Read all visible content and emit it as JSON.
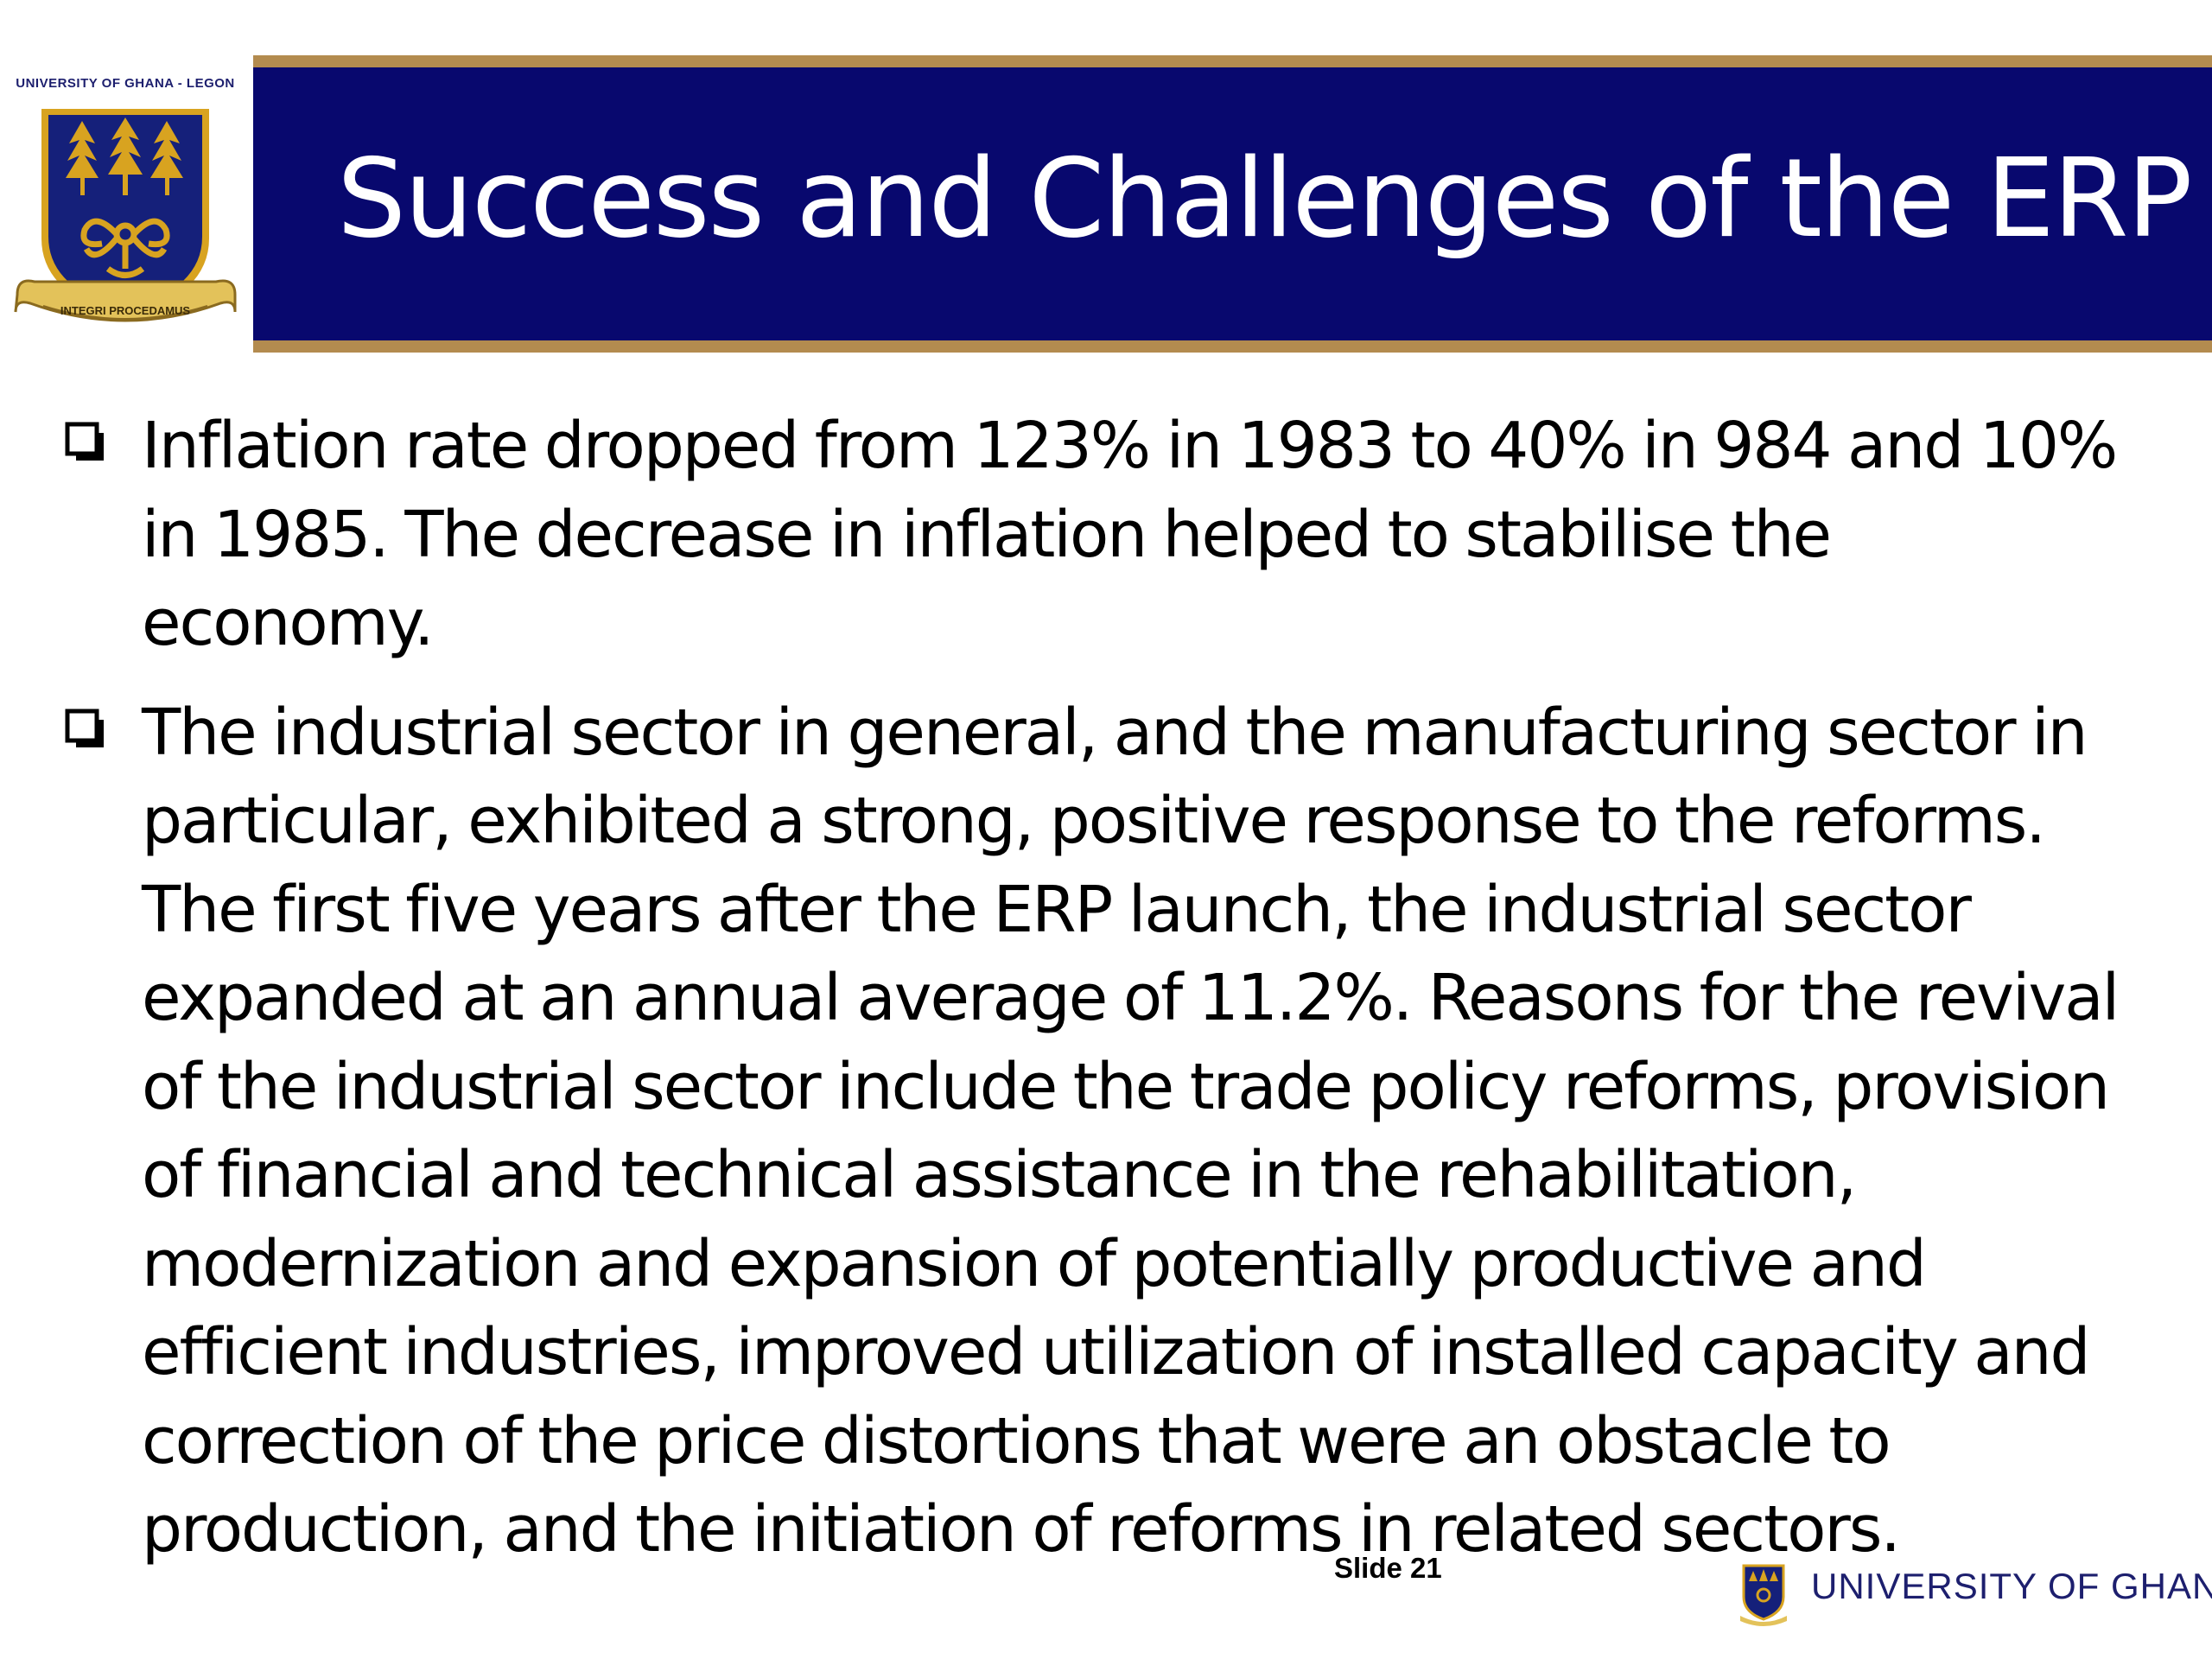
{
  "header": {
    "logo_caption": "UNIVERSITY OF GHANA - LEGON",
    "logo_motto": "INTEGRI PROCEDAMUS",
    "title": "Success and Challenges of the ERP"
  },
  "bullets": [
    {
      "icon": "checkbox-square-icon",
      "text": "Inflation rate dropped from 123% in 1983 to 40% in 984 and 10% in 1985. The decrease in inflation helped to stabilise the economy."
    },
    {
      "icon": "checkbox-square-icon",
      "text": "The industrial sector in general, and the manufacturing sector in particular, exhibited a strong, positive response to the reforms. The first five years after the ERP launch, the industrial sector expanded at an annual average of 11.2%. Reasons for the revival of the industrial sector include the trade policy reforms, provision of financial and technical assistance in the rehabilitation, modernization and expansion of potentially productive and efficient industries, improved utilization of installed capacity and correction of the price distortions that were an obstacle to production, and the initiation of reforms in related sectors."
    }
  ],
  "footer": {
    "slide_number": "Slide 21",
    "brand": "UNIVERSITY OF GHANA"
  },
  "colors": {
    "title_band": "#08086e",
    "gold_rule": "#b38b4f",
    "crest_gold": "#d8a320",
    "crest_blue": "#15207a",
    "brand_text": "#1d1f6e"
  }
}
